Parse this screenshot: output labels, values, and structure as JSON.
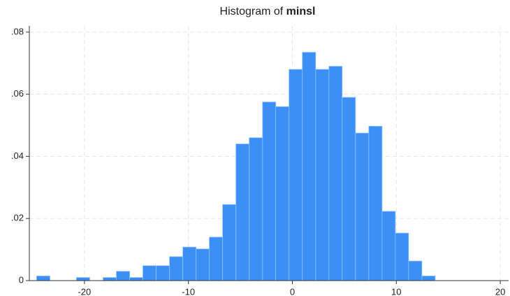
{
  "chart_data": {
    "type": "histogram",
    "title": "Histogram of",
    "title_variable": "minsl",
    "bins": [
      -24.6,
      -23.32,
      -22.04,
      -20.77,
      -19.49,
      -18.21,
      -16.93,
      -15.65,
      -14.38,
      -13.1,
      -11.82,
      -10.54,
      -9.26,
      -7.99,
      -6.71,
      -5.43,
      -4.15,
      -2.87,
      -1.6,
      -0.32,
      0.96,
      2.24,
      3.52,
      4.79,
      6.07,
      7.35,
      8.63,
      9.91,
      11.18,
      12.46,
      13.74
    ],
    "values": [
      0.0015,
      0,
      0,
      0.001,
      0,
      0.001,
      0.003,
      0.001,
      0.0048,
      0.0048,
      0.0077,
      0.0108,
      0.0102,
      0.014,
      0.0245,
      0.044,
      0.046,
      0.0575,
      0.056,
      0.068,
      0.0735,
      0.068,
      0.069,
      0.059,
      0.0475,
      0.0497,
      0.0223,
      0.0153,
      0.0063,
      0.0015
    ],
    "color": "#3b8ff5",
    "xlim": [
      -25.3,
      20.8
    ],
    "xticks": [
      -20,
      -10,
      0,
      10,
      20
    ],
    "ylim": [
      0,
      0.082
    ],
    "yticks": [
      0,
      {
        "value": 0.02,
        "label": ".02"
      },
      {
        "value": 0.04,
        "label": ".04"
      },
      {
        "value": 0.06,
        "label": ".06"
      },
      {
        "value": 0.08,
        "label": ".08"
      }
    ],
    "grid": true
  }
}
